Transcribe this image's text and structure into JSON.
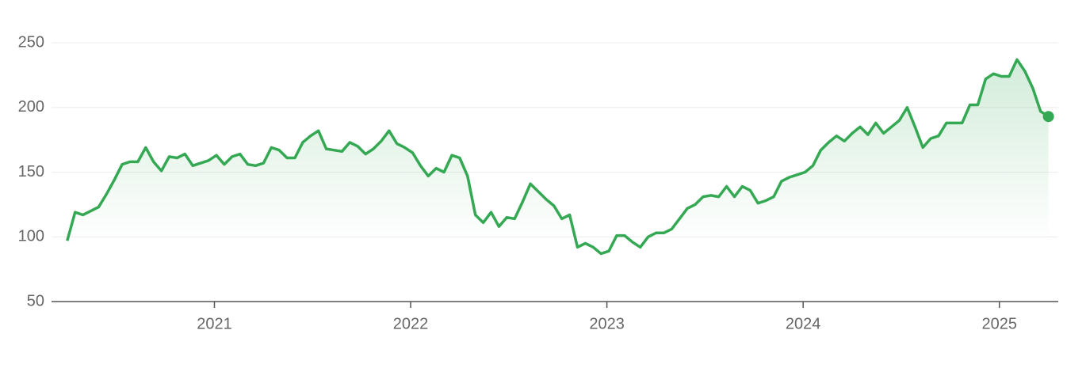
{
  "chart_data": {
    "type": "line",
    "x": [
      2020.25,
      2020.29,
      2020.33,
      2020.37,
      2020.41,
      2020.45,
      2020.49,
      2020.53,
      2020.57,
      2020.61,
      2020.65,
      2020.69,
      2020.73,
      2020.77,
      2020.81,
      2020.85,
      2020.89,
      2020.93,
      2020.97,
      2021.01,
      2021.05,
      2021.09,
      2021.13,
      2021.17,
      2021.21,
      2021.25,
      2021.29,
      2021.33,
      2021.37,
      2021.41,
      2021.45,
      2021.49,
      2021.53,
      2021.57,
      2021.61,
      2021.65,
      2021.69,
      2021.73,
      2021.77,
      2021.81,
      2021.85,
      2021.89,
      2021.93,
      2021.97,
      2022.01,
      2022.05,
      2022.09,
      2022.13,
      2022.17,
      2022.21,
      2022.25,
      2022.29,
      2022.33,
      2022.37,
      2022.41,
      2022.45,
      2022.49,
      2022.53,
      2022.57,
      2022.61,
      2022.65,
      2022.69,
      2022.73,
      2022.77,
      2022.81,
      2022.85,
      2022.89,
      2022.93,
      2022.97,
      2023.01,
      2023.05,
      2023.09,
      2023.13,
      2023.17,
      2023.21,
      2023.25,
      2023.29,
      2023.33,
      2023.37,
      2023.41,
      2023.45,
      2023.49,
      2023.53,
      2023.57,
      2023.61,
      2023.65,
      2023.69,
      2023.73,
      2023.77,
      2023.81,
      2023.85,
      2023.89,
      2023.93,
      2023.97,
      2024.01,
      2024.05,
      2024.09,
      2024.13,
      2024.17,
      2024.21,
      2024.25,
      2024.29,
      2024.33,
      2024.37,
      2024.41,
      2024.45,
      2024.49,
      2024.53,
      2024.57,
      2024.61,
      2024.65,
      2024.69,
      2024.73,
      2024.77,
      2024.81,
      2024.85,
      2024.89,
      2024.93,
      2024.97,
      2025.01,
      2025.05,
      2025.09,
      2025.13,
      2025.17,
      2025.21,
      2025.25
    ],
    "series": [
      {
        "color": "#34a853",
        "values": [
          97,
          119,
          117,
          120,
          123,
          133,
          144,
          156,
          158,
          158,
          169,
          158,
          151,
          162,
          161,
          164,
          155,
          157,
          159,
          163,
          156,
          162,
          164,
          156,
          155,
          157,
          169,
          167,
          161,
          161,
          173,
          178,
          182,
          168,
          167,
          166,
          173,
          170,
          164,
          168,
          174,
          182,
          172,
          169,
          165,
          155,
          147,
          153,
          150,
          163,
          161,
          147,
          117,
          111,
          119,
          108,
          115,
          114,
          127,
          141,
          135,
          129,
          124,
          114,
          117,
          92,
          95,
          92,
          87,
          89,
          101,
          101,
          96,
          92,
          100,
          103,
          103,
          106,
          114,
          122,
          125,
          131,
          132,
          131,
          139,
          131,
          139,
          136,
          126,
          128,
          131,
          143,
          146,
          148,
          150,
          155,
          167,
          173,
          178,
          174,
          180,
          185,
          179,
          188,
          180,
          185,
          190,
          200,
          185,
          169,
          176,
          178,
          188,
          188,
          188,
          202,
          202,
          222,
          226,
          224,
          224,
          237,
          228,
          215,
          197,
          193
        ]
      }
    ],
    "xlim": [
      2020.17,
      2025.3
    ],
    "xticks": [
      2021,
      2022,
      2023,
      2024,
      2025
    ],
    "ylim": [
      50,
      250
    ],
    "yticks": [
      50,
      100,
      150,
      200,
      250
    ],
    "grid": true
  }
}
